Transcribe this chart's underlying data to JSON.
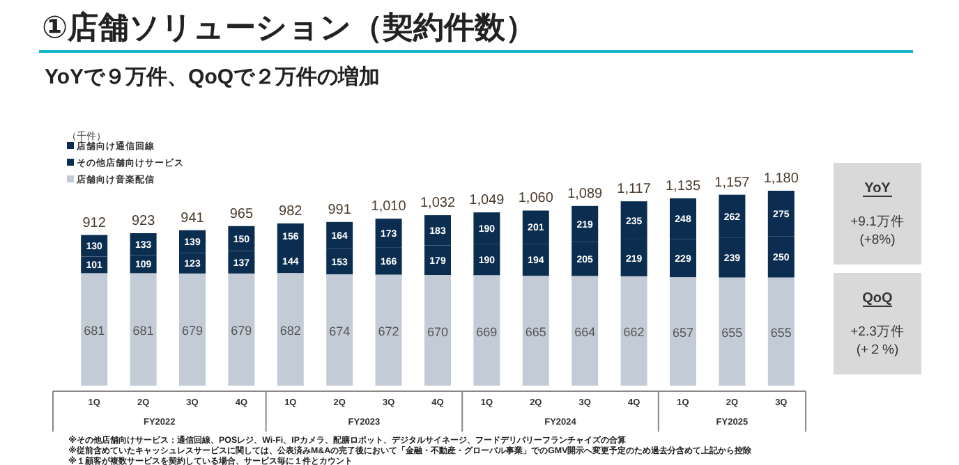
{
  "chart_data": {
    "type": "bar",
    "stacked": true,
    "title": "①店舗ソリューション（契約件数）",
    "subtitle": "YoYで９万件、QoQで２万件の増加",
    "categories": [
      "1Q",
      "2Q",
      "3Q",
      "4Q",
      "1Q",
      "2Q",
      "3Q",
      "4Q",
      "1Q",
      "2Q",
      "3Q",
      "4Q",
      "1Q",
      "2Q",
      "3Q"
    ],
    "series": [
      {
        "name": "店舗向け音楽配信",
        "color": "#c3ccd6",
        "values": [
          681,
          681,
          679,
          679,
          682,
          674,
          672,
          670,
          669,
          665,
          664,
          662,
          657,
          655,
          655
        ]
      },
      {
        "name": "その他店舗向けサービス",
        "color": "#0b2d4f",
        "values": [
          101,
          109,
          123,
          137,
          144,
          153,
          166,
          179,
          190,
          194,
          205,
          219,
          229,
          239,
          250
        ]
      },
      {
        "name": "店舗向け通信回線",
        "color": "#0b2d4f",
        "values": [
          130,
          133,
          139,
          150,
          156,
          164,
          173,
          183,
          190,
          201,
          219,
          235,
          248,
          262,
          275
        ]
      }
    ],
    "totals": [
      "912",
      "923",
      "941",
      "965",
      "982",
      "991",
      "1,010",
      "1,032",
      "1,049",
      "1,060",
      "1,089",
      "1,117",
      "1,135",
      "1,157",
      "1,180"
    ],
    "data_labels": true,
    "legend": "top left",
    "annotations": [
      "FY2022",
      "FY2023",
      "FY2024",
      "FY2025",
      "YoY",
      "+9.1万件",
      "(+8%)",
      "QoQ",
      "+2.3万件",
      "(+２%)",
      "※その他店舗向けサービス：通信回線、POSレジ、Wi-Fi、IPカメラ、配膳ロボット、デジタルサイネージ、フードデリバリーフランチャイズの合算",
      "※従前含めていたキャッシュレスサービスに関しては、公表済みM&Aの完了後において「金融・不動産・グローバル事業」でのGMV開示へ変更予定のため過去分含めて上記から控除",
      "※１顧客が複数サービスを契約している場合、サービス毎に１件とカウント",
      "（千件）"
    ]
  }
}
